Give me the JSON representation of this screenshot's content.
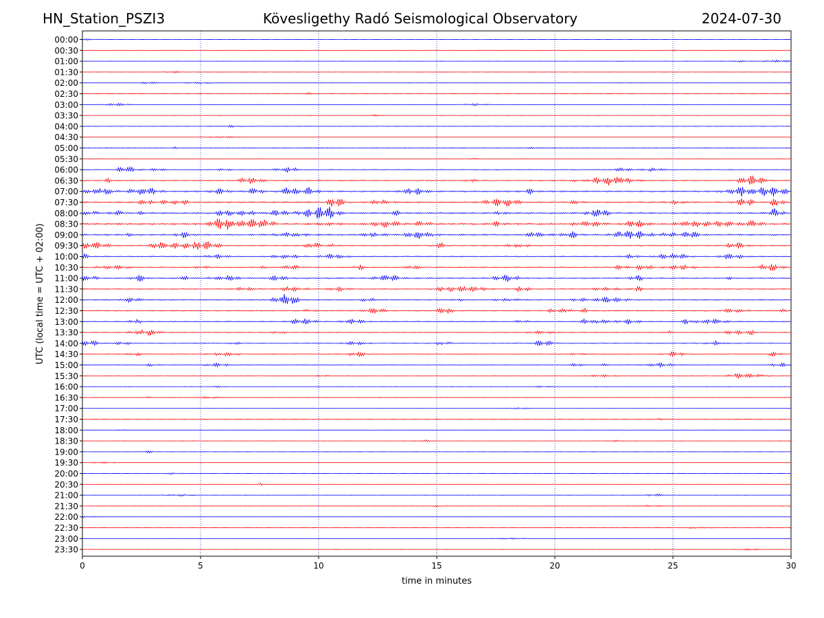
{
  "header": {
    "station": "HN_Station_PSZI3",
    "observatory": "Kövesligethy Radó Seismological Observatory",
    "date": "2024-07-30"
  },
  "chart_data": {
    "type": "line",
    "title": "Kövesligethy Radó Seismological Observatory",
    "xlabel": "time in minutes",
    "ylabel": "UTC (local time = UTC + 02:00)",
    "xlim": [
      0,
      30
    ],
    "xticks": [
      "0",
      "5",
      "10",
      "15",
      "20",
      "25",
      "30"
    ],
    "vertical_grid_minutes": [
      5,
      10,
      15,
      20,
      25
    ],
    "trace_colors": [
      "#0000ff",
      "#ff0000"
    ],
    "rows": [
      "00:00",
      "00:30",
      "01:00",
      "01:30",
      "02:00",
      "02:30",
      "03:00",
      "03:30",
      "04:00",
      "04:30",
      "05:00",
      "05:30",
      "06:00",
      "06:30",
      "07:00",
      "07:30",
      "08:00",
      "08:30",
      "09:00",
      "09:30",
      "10:00",
      "10:30",
      "11:00",
      "11:30",
      "12:00",
      "12:30",
      "13:00",
      "13:30",
      "14:00",
      "14:30",
      "15:00",
      "15:30",
      "16:00",
      "16:30",
      "17:00",
      "17:30",
      "18:00",
      "18:30",
      "19:00",
      "19:30",
      "20:00",
      "20:30",
      "21:00",
      "21:30",
      "22:00",
      "22:30",
      "23:00",
      "23:30"
    ],
    "activity": [
      0.2,
      0.2,
      0.3,
      0.2,
      0.3,
      0.2,
      0.3,
      0.2,
      0.2,
      0.2,
      0.3,
      0.2,
      1.2,
      1.6,
      2.2,
      2.2,
      2.3,
      2.6,
      2.2,
      1.8,
      1.6,
      1.6,
      1.8,
      1.6,
      1.6,
      1.5,
      1.5,
      1.3,
      1.3,
      1.2,
      1.0,
      0.8,
      0.3,
      0.3,
      0.2,
      0.2,
      0.2,
      0.3,
      0.2,
      0.2,
      0.2,
      0.2,
      0.3,
      0.3,
      0.2,
      0.2,
      0.2,
      0.2
    ]
  }
}
